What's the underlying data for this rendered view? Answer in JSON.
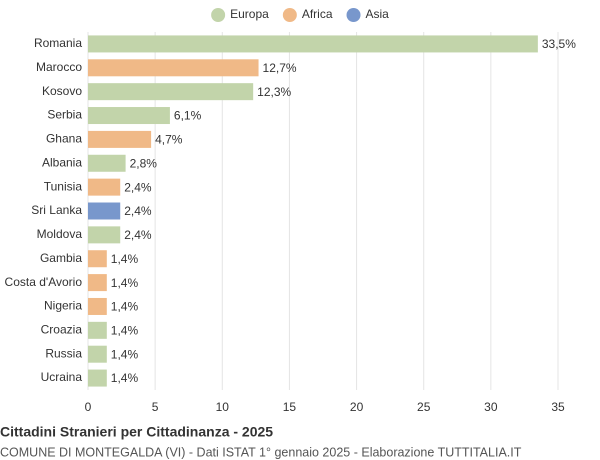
{
  "chart_data": {
    "type": "bar",
    "orientation": "horizontal",
    "title": "Cittadini Stranieri per Cittadinanza - 2025",
    "subtitle": "COMUNE DI MONTEGALDA (VI) - Dati ISTAT 1° gennaio 2025 - Elaborazione TUTTITALIA.IT",
    "categories": [
      "Romania",
      "Marocco",
      "Kosovo",
      "Serbia",
      "Ghana",
      "Albania",
      "Tunisia",
      "Sri Lanka",
      "Moldova",
      "Gambia",
      "Costa d'Avorio",
      "Nigeria",
      "Croazia",
      "Russia",
      "Ucraina"
    ],
    "series": [
      {
        "name": "Europa",
        "color": "#c2d4aa",
        "values": [
          33.5,
          null,
          12.3,
          6.1,
          null,
          2.8,
          null,
          null,
          2.4,
          null,
          null,
          null,
          1.4,
          1.4,
          1.4
        ],
        "value_labels": [
          "33,5%",
          null,
          "12,3%",
          "6,1%",
          null,
          "2,8%",
          null,
          null,
          "2,4%",
          null,
          null,
          null,
          "1,4%",
          "1,4%",
          "1,4%"
        ]
      },
      {
        "name": "Africa",
        "color": "#f0b987",
        "values": [
          null,
          12.7,
          null,
          null,
          4.7,
          null,
          2.4,
          null,
          null,
          1.4,
          1.4,
          1.4,
          null,
          null,
          null
        ],
        "value_labels": [
          null,
          "12,7%",
          null,
          null,
          "4,7%",
          null,
          "2,4%",
          null,
          null,
          "1,4%",
          "1,4%",
          "1,4%",
          null,
          null,
          null
        ]
      },
      {
        "name": "Asia",
        "color": "#7897cc",
        "values": [
          null,
          null,
          null,
          null,
          null,
          null,
          null,
          2.4,
          null,
          null,
          null,
          null,
          null,
          null,
          null
        ],
        "value_labels": [
          null,
          null,
          null,
          null,
          null,
          null,
          null,
          "2,4%",
          null,
          null,
          null,
          null,
          null,
          null,
          null
        ]
      }
    ],
    "xlim": [
      0,
      35
    ],
    "xticks": [
      0,
      5,
      10,
      15,
      20,
      25,
      30,
      35
    ],
    "grid": true,
    "legend": "top"
  }
}
